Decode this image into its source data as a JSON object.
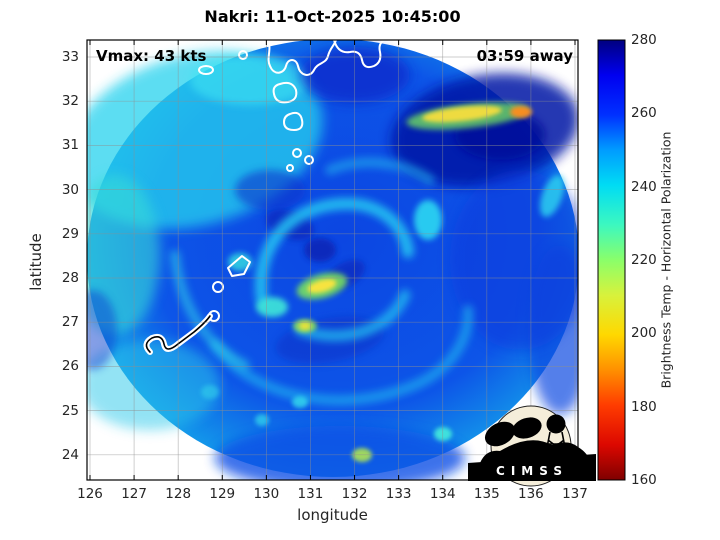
{
  "chart_data": {
    "type": "heatmap",
    "title": "Nakri: 11-Oct-2025 10:45:00",
    "annotations": [
      {
        "text": "Vmax: 43 kts",
        "position": "top-left"
      },
      {
        "text": "03:59 away",
        "position": "top-right"
      }
    ],
    "xlabel": "longitude",
    "ylabel": "latitude",
    "xlim": [
      125.9,
      137.1
    ],
    "ylim": [
      23.55,
      33.45
    ],
    "axes": {
      "xticks": [
        126,
        127,
        128,
        129,
        130,
        131,
        132,
        133,
        134,
        135,
        136,
        137
      ],
      "yticks": [
        33,
        32,
        31,
        30,
        29,
        28,
        27,
        26,
        25,
        24
      ]
    },
    "colorbar": {
      "label": "Brightness Temp - Horizontal Polarization",
      "min": 160,
      "max": 280,
      "ticks": [
        280,
        260,
        240,
        220,
        200,
        180,
        160
      ],
      "colormap": "reversed jet (high Tb = dark blue, low Tb = dark red)",
      "stop_colors": {
        "280": "#000080",
        "270": "#0000f0",
        "260": "#0030ff",
        "250": "#009cff",
        "240": "#00dcf4",
        "230": "#3cf8c0",
        "220": "#8aff6a",
        "210": "#d8f23c",
        "200": "#ffd800",
        "190": "#ff9000",
        "180": "#ff3c00",
        "170": "#dc0800",
        "160": "#7f0000"
      }
    },
    "storm": {
      "name": "Nakri",
      "timestamp": "11-Oct-2025 10:45:00",
      "vmax_kts": 43,
      "time_until_pass": "03:59",
      "approx_center": {
        "lon": 131.0,
        "lat": 28.6
      }
    },
    "swath": {
      "shape": "circular microwave scan footprint, white (no data) outside",
      "approx_center": {
        "lon": 131.5,
        "lat": 28.3
      },
      "background_tb_K": "250-268 K blue ocean scene"
    },
    "features": [
      "Cyan spiral rainbands (Tb ~235-245 K) wrapping around a darker blue eye region near 131.0E 28.6N",
      "Yellow-green convective patch (Tb ~205-215 K) just southwest of the center near 130.9E 27.9N",
      "Elongated yellow/orange convective line (Tb minima ~190 K) northeast of the storm near 134-135.5E 31.4N",
      "Dark navy (Tb ~265-280 K) region in the upper right over/near Shikoku",
      "Light cyan (Tb ~240 K) broad shield on the west / upper-left portion of the swath",
      "White coastline contours: Kyushu and small islands across the top, Yakushima/Tanegashima mid-left, Amami chain (black-cored outline) lower left",
      "Scattered small cyan and yellow-green convective cells in the southern semicircle"
    ],
    "logo": {
      "text": "CIMSS",
      "description": "CIMSS logo: cream circle with black satellite-dish and water-tower silhouettes over a black banner"
    }
  }
}
